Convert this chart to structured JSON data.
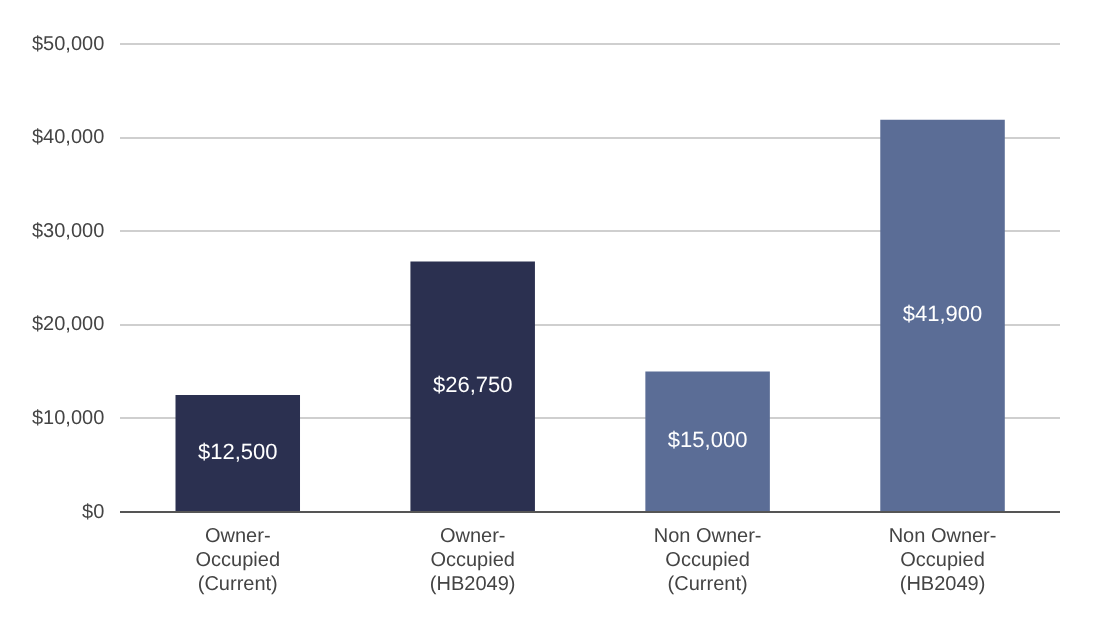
{
  "chart_data": {
    "type": "bar",
    "categories": [
      "Owner-\nOccupied\n(Current)",
      "Owner-\nOccupied\n(HB2049)",
      "Non Owner-\nOccupied\n(Current)",
      "Non Owner-\nOccupied\n(HB2049)"
    ],
    "values": [
      12500,
      26750,
      15000,
      41900
    ],
    "colors": [
      "#2b3050",
      "#2b3050",
      "#5b6d96",
      "#5b6d96"
    ],
    "value_labels": [
      "$12,500",
      "$26,750",
      "$15,000",
      "$41,900"
    ],
    "ylim": [
      0,
      50000
    ],
    "yticks": [
      {
        "value": 0,
        "label": "$0"
      },
      {
        "value": 10000,
        "label": "$10,000"
      },
      {
        "value": 20000,
        "label": "$20,000"
      },
      {
        "value": 30000,
        "label": "$30,000"
      },
      {
        "value": 40000,
        "label": "$40,000"
      },
      {
        "value": 50000,
        "label": "$50,000"
      }
    ],
    "grid": "y"
  }
}
